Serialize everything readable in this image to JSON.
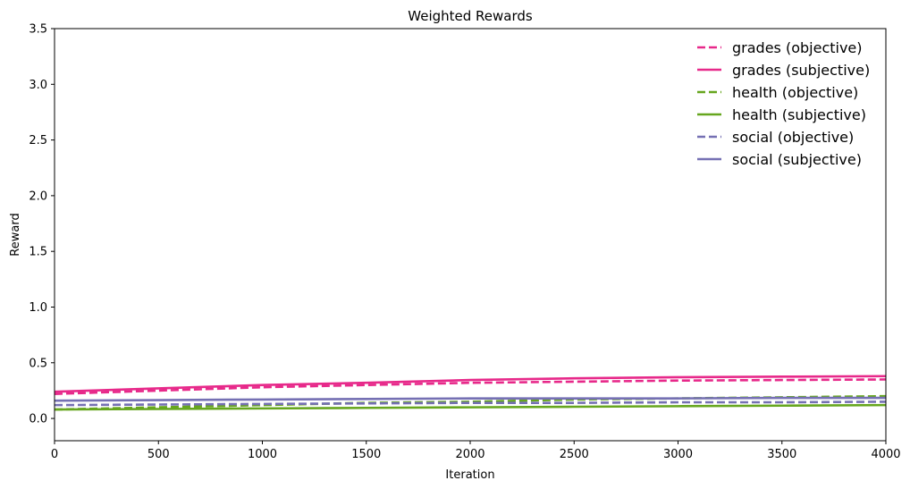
{
  "chart_data": {
    "type": "line",
    "title": "Weighted Rewards",
    "xlabel": "Iteration",
    "ylabel": "Reward",
    "xlim": [
      0,
      4000
    ],
    "ylim": [
      -0.2,
      3.5
    ],
    "xticks": [
      "0",
      "500",
      "1000",
      "1500",
      "2000",
      "2500",
      "3000",
      "3500",
      "4000"
    ],
    "yticks": [
      "0.0",
      "0.5",
      "1.0",
      "1.5",
      "2.0",
      "2.5",
      "3.0",
      "3.5"
    ],
    "grid": false,
    "legend_position": "top-right",
    "x": [
      0,
      500,
      1000,
      1500,
      2000,
      2500,
      3000,
      3500,
      4000
    ],
    "series": [
      {
        "name": "grades (objective)",
        "color": "#e7298a",
        "style": "dashed",
        "values": [
          0.22,
          0.25,
          0.28,
          0.3,
          0.32,
          0.33,
          0.34,
          0.345,
          0.35
        ]
      },
      {
        "name": "grades (subjective)",
        "color": "#e7298a",
        "style": "solid",
        "values": [
          0.24,
          0.27,
          0.3,
          0.32,
          0.345,
          0.36,
          0.37,
          0.375,
          0.38
        ]
      },
      {
        "name": "health (objective)",
        "color": "#66a61e",
        "style": "dashed",
        "values": [
          0.08,
          0.1,
          0.12,
          0.14,
          0.15,
          0.17,
          0.18,
          0.19,
          0.2
        ]
      },
      {
        "name": "health (subjective)",
        "color": "#66a61e",
        "style": "solid",
        "values": [
          0.08,
          0.085,
          0.09,
          0.095,
          0.1,
          0.105,
          0.11,
          0.115,
          0.12
        ]
      },
      {
        "name": "social (objective)",
        "color": "#7570b3",
        "style": "dashed",
        "values": [
          0.12,
          0.125,
          0.13,
          0.135,
          0.14,
          0.14,
          0.145,
          0.145,
          0.15
        ]
      },
      {
        "name": "social (subjective)",
        "color": "#7570b3",
        "style": "solid",
        "values": [
          0.16,
          0.165,
          0.17,
          0.175,
          0.18,
          0.18,
          0.18,
          0.185,
          0.185
        ]
      }
    ]
  }
}
